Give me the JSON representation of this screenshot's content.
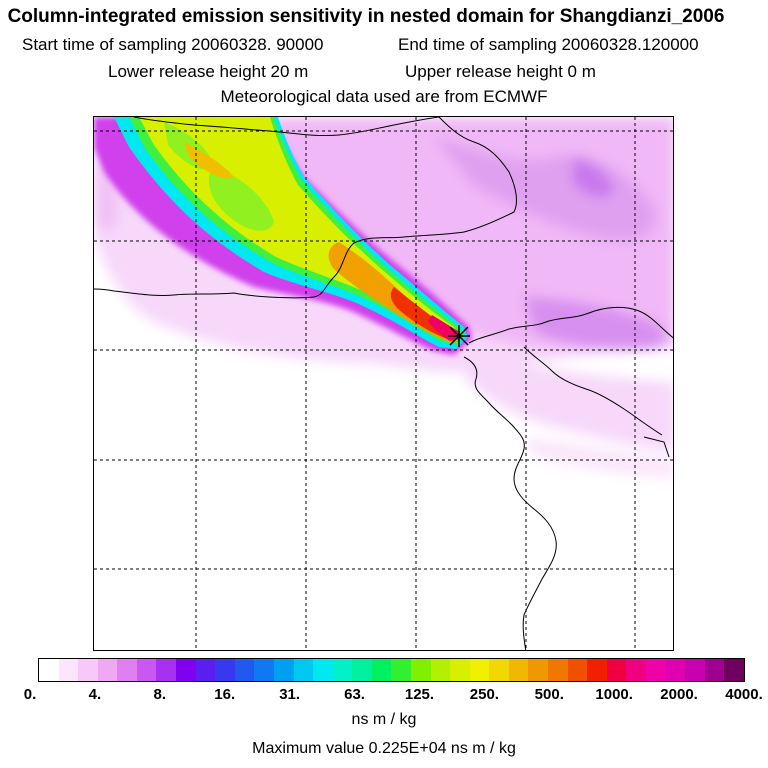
{
  "header": {
    "title": "Column-integrated emission sensitivity in nested domain for Shangdianzi_2006",
    "start_label": "Start time of sampling 20060328. 90000",
    "end_label": "End time of sampling 20060328.120000",
    "lower_label": "Lower release height   20 m",
    "upper_label": "Upper release height    0 m",
    "met_label": "Meteorological data used are from ECMWF"
  },
  "map": {
    "site_name": "Shangdianzi",
    "marker_icon": "release-site-cross-icon",
    "colors": {
      "gridline": "#000000",
      "coastline": "#000000",
      "plume_core": "#ff3300",
      "plume_edge": "#00ffff",
      "background_field": "#f0c8f8"
    }
  },
  "legend": {
    "tick_labels": [
      "0.",
      "4.",
      "8.",
      "16.",
      "31.",
      "63.",
      "125.",
      "250.",
      "500.",
      "1000.",
      "2000.",
      "4000."
    ],
    "units": "ns m / kg",
    "max_value_label": "Maximum value  0.225E+04 ns m / kg",
    "colors": [
      "#ffffff",
      "#fde6fd",
      "#f8c8f8",
      "#f0a8f5",
      "#e080f0",
      "#c858f0",
      "#a830f0",
      "#8000f0",
      "#5a1ef0",
      "#3838f0",
      "#2058f0",
      "#1078f0",
      "#00a0f0",
      "#00c8f0",
      "#00e8f0",
      "#00f0c8",
      "#00f0a0",
      "#00f060",
      "#30f030",
      "#80f000",
      "#b0f000",
      "#d8f000",
      "#f0f000",
      "#f0d800",
      "#f0b800",
      "#f09800",
      "#f07800",
      "#f05000",
      "#f02000",
      "#f00040",
      "#f00080",
      "#f000a8",
      "#e000b0",
      "#c800b0",
      "#a00090",
      "#700060"
    ]
  }
}
